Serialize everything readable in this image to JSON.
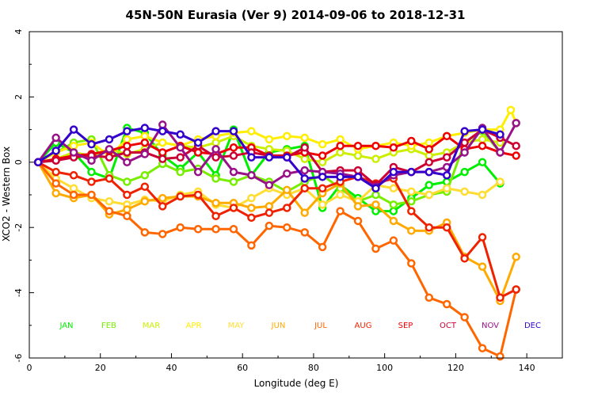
{
  "chart_data": {
    "type": "line",
    "title": "45N-50N Eurasia (Ver 9)   2014-09-06 to 2018-12-31",
    "xlabel": "Longitude (deg E)",
    "ylabel": "XCO2 - Western Box",
    "xlim": [
      0,
      150
    ],
    "ylim": [
      -6,
      4
    ],
    "x_ticks": [
      0,
      20,
      40,
      60,
      80,
      100,
      120,
      140
    ],
    "y_ticks": [
      -6,
      -4,
      -2,
      0,
      2,
      4
    ],
    "grid": false,
    "legend_position": "inside-bottom",
    "series": [
      {
        "name": "JAN",
        "color": "#00ee00",
        "x": [
          2.5,
          7.5,
          12.5,
          17.5,
          22.5,
          27.5,
          32.5,
          37.5,
          42.5,
          47.5,
          52.5,
          57.5,
          62.5,
          67.5,
          72.5,
          77.5,
          82.5,
          87.5,
          92.5,
          97.5,
          102.5,
          107.5,
          112.5,
          117.5,
          122.5,
          127.5,
          132.5
        ],
        "y": [
          0,
          0.6,
          0.3,
          -0.3,
          -0.5,
          1.05,
          0.9,
          0.2,
          -0.2,
          0.3,
          -0.4,
          1.0,
          -0.4,
          0.3,
          0.4,
          0.5,
          -1.4,
          -0.7,
          -1.1,
          -1.5,
          -1.5,
          -1.1,
          -0.7,
          -0.6,
          -0.3,
          0,
          -0.65
        ]
      },
      {
        "name": "FEB",
        "color": "#77ee00",
        "x": [
          2.5,
          7.5,
          12.5,
          17.5,
          22.5,
          27.5,
          32.5,
          37.5,
          42.5,
          47.5,
          52.5,
          57.5,
          62.5,
          67.5,
          72.5,
          77.5,
          82.5,
          87.5,
          92.5,
          97.5,
          102.5,
          107.5,
          112.5,
          117.5,
          122.5,
          127.5,
          132.5
        ],
        "y": [
          0,
          0.3,
          0.6,
          0.7,
          -0.4,
          -0.6,
          -0.4,
          -0.05,
          -0.3,
          -0.2,
          -0.5,
          -0.6,
          -0.4,
          -0.6,
          -0.9,
          -0.6,
          -0.4,
          -0.8,
          -1.2,
          -1.0,
          -1.3,
          -1.2,
          -1.0,
          -0.9,
          0.6,
          0.95,
          0.3
        ]
      },
      {
        "name": "MAR",
        "color": "#ccee00",
        "x": [
          2.5,
          7.5,
          12.5,
          17.5,
          22.5,
          27.5,
          32.5,
          37.5,
          42.5,
          47.5,
          52.5,
          57.5,
          62.5,
          67.5,
          72.5,
          77.5,
          82.5,
          87.5,
          92.5,
          97.5,
          102.5,
          107.5,
          112.5,
          117.5,
          122.5,
          127.5,
          132.5
        ],
        "y": [
          0,
          0.1,
          0.3,
          0.2,
          0.4,
          0.25,
          0.4,
          0.6,
          0.5,
          0.45,
          0.6,
          0.8,
          0.5,
          0.4,
          0.35,
          0.1,
          0,
          0.3,
          0.2,
          0.1,
          0.3,
          0.4,
          0.2,
          0.3,
          0.6,
          0.7,
          0.6
        ]
      },
      {
        "name": "APR",
        "color": "#ffee00",
        "x": [
          2.5,
          7.5,
          12.5,
          17.5,
          22.5,
          27.5,
          32.5,
          37.5,
          42.5,
          47.5,
          52.5,
          57.5,
          62.5,
          67.5,
          72.5,
          77.5,
          82.5,
          87.5,
          92.5,
          97.5,
          102.5,
          107.5,
          112.5,
          117.5,
          122.5,
          127.5,
          132.5,
          135.5,
          137.0
        ],
        "y": [
          0,
          0.3,
          0.5,
          0.6,
          0.2,
          0.7,
          0.8,
          0.6,
          0.5,
          0.7,
          0.8,
          0.9,
          0.95,
          0.7,
          0.8,
          0.75,
          0.55,
          0.7,
          0.4,
          0.5,
          0.6,
          0.5,
          0.6,
          0.8,
          0.9,
          1.0,
          1.0,
          1.6,
          1.2
        ]
      },
      {
        "name": "MAY",
        "color": "#ffdd33",
        "x": [
          2.5,
          7.5,
          12.5,
          17.5,
          22.5,
          27.5,
          32.5,
          37.5,
          42.5,
          47.5,
          52.5,
          57.5,
          62.5,
          67.5,
          72.5,
          77.5,
          82.5,
          87.5,
          92.5,
          97.5,
          102.5,
          107.5,
          112.5,
          117.5,
          122.5,
          127.5,
          132.5
        ],
        "y": [
          0,
          -0.5,
          -0.8,
          -1.1,
          -1.2,
          -1.3,
          -1.15,
          -1.2,
          -1.0,
          -0.9,
          -1.3,
          -1.4,
          -1.1,
          -0.8,
          -1.0,
          -0.8,
          -1.3,
          -1.0,
          -1.2,
          -0.7,
          -0.8,
          -0.9,
          -1.0,
          -0.8,
          -0.9,
          -1.0,
          -0.6
        ]
      },
      {
        "name": "JUN",
        "color": "#ffaa00",
        "x": [
          2.5,
          7.5,
          12.5,
          17.5,
          22.5,
          27.5,
          32.5,
          37.5,
          42.5,
          47.5,
          52.5,
          57.5,
          62.5,
          67.5,
          72.5,
          77.5,
          82.5,
          87.5,
          92.5,
          97.5,
          102.5,
          107.5,
          112.5,
          117.5,
          122.5,
          127.5,
          132.5,
          137.0
        ],
        "y": [
          0,
          -0.95,
          -1.1,
          -1.0,
          -1.6,
          -1.45,
          -1.2,
          -1.1,
          -1.05,
          -1.05,
          -1.25,
          -1.25,
          -1.4,
          -1.35,
          -0.85,
          -1.55,
          -0.95,
          -0.65,
          -1.35,
          -1.3,
          -1.8,
          -2.1,
          -2.1,
          -1.85,
          -2.9,
          -3.2,
          -4.25,
          -2.9
        ]
      },
      {
        "name": "JUL",
        "color": "#ff6600",
        "x": [
          2.5,
          7.5,
          12.5,
          17.5,
          22.5,
          27.5,
          32.5,
          37.5,
          42.5,
          47.5,
          52.5,
          57.5,
          62.5,
          67.5,
          72.5,
          77.5,
          82.5,
          87.5,
          92.5,
          97.5,
          102.5,
          107.5,
          112.5,
          117.5,
          122.5,
          127.5,
          132.5,
          137.0
        ],
        "y": [
          0,
          -0.65,
          -1.0,
          -1.0,
          -1.5,
          -1.65,
          -2.15,
          -2.2,
          -2.0,
          -2.05,
          -2.05,
          -2.05,
          -2.55,
          -1.95,
          -2.0,
          -2.15,
          -2.6,
          -1.5,
          -1.8,
          -2.65,
          -2.4,
          -3.1,
          -4.15,
          -4.35,
          -4.75,
          -5.7,
          -5.95,
          -3.9
        ]
      },
      {
        "name": "AUG",
        "color": "#ee2200",
        "x": [
          2.5,
          7.5,
          12.5,
          17.5,
          22.5,
          27.5,
          32.5,
          37.5,
          42.5,
          47.5,
          52.5,
          57.5,
          62.5,
          67.5,
          72.5,
          77.5,
          82.5,
          87.5,
          92.5,
          97.5,
          102.5,
          107.5,
          112.5,
          117.5,
          122.5,
          127.5,
          132.5,
          137.0
        ],
        "y": [
          0,
          -0.3,
          -0.4,
          -0.6,
          -0.5,
          -1.0,
          -0.75,
          -1.35,
          -1.05,
          -1.0,
          -1.65,
          -1.4,
          -1.7,
          -1.55,
          -1.4,
          -0.8,
          -0.8,
          -0.6,
          -0.45,
          -0.65,
          -0.5,
          -1.5,
          -2.0,
          -2.0,
          -2.95,
          -2.3,
          -4.15,
          -3.9
        ]
      },
      {
        "name": "SEP",
        "color": "#ee0000",
        "x": [
          2.5,
          7.5,
          12.5,
          17.5,
          22.5,
          27.5,
          32.5,
          37.5,
          42.5,
          47.5,
          52.5,
          57.5,
          62.5,
          67.5,
          72.5,
          77.5,
          82.5,
          87.5,
          92.5,
          97.5,
          102.5,
          107.5,
          112.5,
          117.5,
          122.5,
          127.5,
          132.5,
          137.0
        ],
        "y": [
          0,
          0.1,
          0.2,
          0.25,
          0.35,
          0.5,
          0.6,
          0.3,
          0.5,
          0.3,
          0.25,
          0.45,
          0.45,
          0.2,
          0.2,
          0.3,
          0.2,
          0.5,
          0.5,
          0.5,
          0.45,
          0.65,
          0.4,
          0.8,
          0.4,
          0.5,
          0.3,
          0.2
        ]
      },
      {
        "name": "OCT",
        "color": "#cc0033",
        "x": [
          2.5,
          7.5,
          12.5,
          17.5,
          22.5,
          27.5,
          32.5,
          37.5,
          42.5,
          47.5,
          52.5,
          57.5,
          62.5,
          67.5,
          72.5,
          77.5,
          82.5,
          87.5,
          92.5,
          97.5,
          102.5,
          107.5,
          112.5,
          117.5,
          122.5,
          127.5,
          132.5,
          137.0
        ],
        "y": [
          0,
          0.05,
          0.15,
          0.2,
          0.15,
          0.3,
          0.3,
          0.1,
          0.15,
          0.5,
          0.15,
          0.2,
          0.3,
          0.2,
          0.15,
          0.45,
          -0.3,
          -0.25,
          -0.25,
          -0.7,
          -0.15,
          -0.3,
          0,
          0.15,
          0.6,
          1.0,
          0.75,
          0.5
        ]
      },
      {
        "name": "NOV",
        "color": "#991188",
        "x": [
          2.5,
          7.5,
          12.5,
          17.5,
          22.5,
          27.5,
          32.5,
          37.5,
          42.5,
          47.5,
          52.5,
          57.5,
          62.5,
          67.5,
          72.5,
          77.5,
          82.5,
          87.5,
          92.5,
          97.5,
          102.5,
          107.5,
          112.5,
          117.5,
          122.5,
          127.5,
          132.5,
          137.0
        ],
        "y": [
          0,
          0.75,
          0.3,
          0.05,
          0.4,
          0.0,
          0.25,
          1.15,
          0.45,
          -0.3,
          0.4,
          -0.3,
          -0.4,
          -0.7,
          -0.35,
          -0.25,
          -0.3,
          -0.35,
          -0.45,
          -0.75,
          -0.4,
          -0.3,
          -0.3,
          -0.15,
          0.3,
          1.05,
          0.3,
          1.2
        ]
      },
      {
        "name": "DEC",
        "color": "#3300cc",
        "x": [
          2.5,
          7.5,
          12.5,
          17.5,
          22.5,
          27.5,
          32.5,
          37.5,
          42.5,
          47.5,
          52.5,
          57.5,
          62.5,
          67.5,
          72.5,
          77.5,
          82.5,
          87.5,
          92.5,
          97.5,
          102.5,
          107.5,
          112.5,
          117.5,
          122.5,
          127.5,
          132.5
        ],
        "y": [
          0,
          0.35,
          1.0,
          0.55,
          0.7,
          0.95,
          1.05,
          0.95,
          0.85,
          0.6,
          0.95,
          0.95,
          0.15,
          0.15,
          0.15,
          -0.5,
          -0.45,
          -0.45,
          -0.45,
          -0.8,
          -0.3,
          -0.3,
          -0.3,
          -0.4,
          0.95,
          1.0,
          0.85
        ]
      }
    ]
  }
}
